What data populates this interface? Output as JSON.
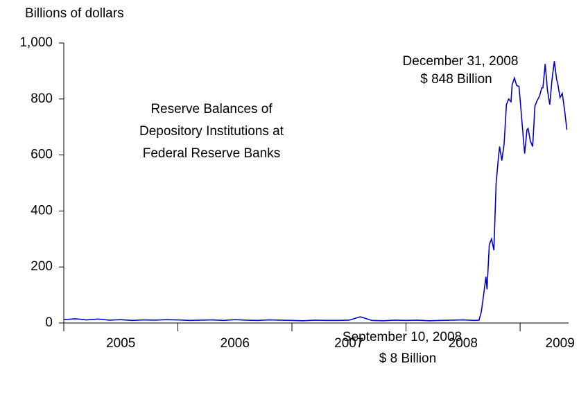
{
  "chart_data": {
    "type": "line",
    "title": [
      "Reserve Balances of",
      "Depository Institutions at",
      "Federal Reserve Banks"
    ],
    "ylabel": "Billions of dollars",
    "annotations": [
      {
        "lines": [
          "September 10, 2008",
          "$ 8 Billion"
        ]
      },
      {
        "lines": [
          "December 31, 2008",
          "$ 848 Billion"
        ]
      }
    ],
    "x": [
      2005.0,
      2005.1,
      2005.2,
      2005.3,
      2005.4,
      2005.5,
      2005.6,
      2005.7,
      2005.8,
      2005.9,
      2006.0,
      2006.1,
      2006.2,
      2006.3,
      2006.4,
      2006.5,
      2006.6,
      2006.7,
      2006.8,
      2006.9,
      2007.0,
      2007.1,
      2007.2,
      2007.3,
      2007.4,
      2007.5,
      2007.6,
      2007.7,
      2007.8,
      2007.9,
      2008.0,
      2008.1,
      2008.2,
      2008.3,
      2008.4,
      2008.5,
      2008.6,
      2008.64,
      2008.66,
      2008.68,
      2008.7,
      2008.71,
      2008.73,
      2008.75,
      2008.77,
      2008.79,
      2008.81,
      2008.82,
      2008.84,
      2008.86,
      2008.88,
      2008.9,
      2008.92,
      2008.93,
      2008.95,
      2008.97,
      2008.99,
      2009.0,
      2009.02,
      2009.04,
      2009.06,
      2009.07,
      2009.09,
      2009.11,
      2009.13,
      2009.15,
      2009.17,
      2009.19,
      2009.2,
      2009.22,
      2009.24,
      2009.26,
      2009.28,
      2009.3,
      2009.32,
      2009.33,
      2009.35,
      2009.37,
      2009.39,
      2009.41
    ],
    "series": [
      {
        "name": "Reserve balances",
        "color": "#0000cc",
        "values": [
          12,
          15,
          11,
          14,
          10,
          12,
          9,
          11,
          10,
          12,
          11,
          9,
          10,
          11,
          9,
          12,
          10,
          9,
          11,
          10,
          9,
          8,
          10,
          9,
          9,
          10,
          22,
          9,
          8,
          10,
          9,
          10,
          8,
          9,
          10,
          11,
          9,
          10,
          40,
          100,
          165,
          120,
          280,
          300,
          260,
          500,
          590,
          630,
          580,
          640,
          780,
          800,
          790,
          850,
          875,
          848,
          845,
          800,
          700,
          605,
          690,
          695,
          650,
          630,
          775,
          795,
          810,
          840,
          840,
          925,
          830,
          780,
          870,
          935,
          870,
          855,
          805,
          820,
          760,
          690
        ]
      }
    ],
    "xlim": [
      2005,
      2009.425
    ],
    "xtick_marks": [
      2005,
      2006,
      2007,
      2008,
      2009
    ],
    "xticks": [
      {
        "value": 2005.5,
        "label": "2005"
      },
      {
        "value": 2006.5,
        "label": "2006"
      },
      {
        "value": 2007.5,
        "label": "2007"
      },
      {
        "value": 2008.5,
        "label": "2008"
      },
      {
        "value": 2009.35,
        "label": "2009"
      }
    ],
    "ylim": [
      0,
      1000
    ],
    "yticks": [
      0,
      200,
      400,
      600,
      800,
      {
        "value": 1000,
        "label": "1,000"
      }
    ]
  }
}
